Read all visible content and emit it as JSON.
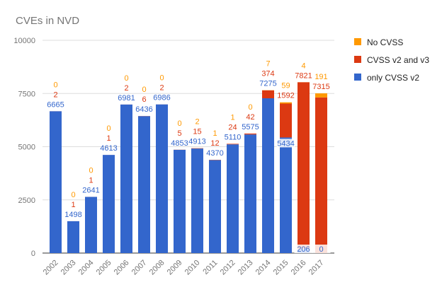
{
  "chart_data": {
    "type": "bar",
    "stacked": true,
    "title": "CVEs in NVD",
    "categories": [
      "2002",
      "2003",
      "2004",
      "2005",
      "2006",
      "2007",
      "2008",
      "2009",
      "2010",
      "2011",
      "2012",
      "2013",
      "2014",
      "2015",
      "2016",
      "2017"
    ],
    "series": [
      {
        "name": "only CVSS v2",
        "color": "#3366cc",
        "values": [
          6665,
          1498,
          2641,
          4613,
          6981,
          6436,
          6986,
          4853,
          4913,
          4370,
          5110,
          5575,
          7275,
          5434,
          206,
          0
        ]
      },
      {
        "name": "CVSS v2 and v3",
        "color": "#dc3912",
        "values": [
          2,
          1,
          1,
          1,
          2,
          6,
          2,
          5,
          15,
          12,
          24,
          42,
          374,
          1592,
          7821,
          7315
        ]
      },
      {
        "name": "No CVSS",
        "color": "#ff9900",
        "values": [
          0,
          0,
          0,
          0,
          0,
          0,
          0,
          0,
          2,
          1,
          1,
          0,
          7,
          59,
          4,
          191
        ]
      }
    ],
    "ylim": [
      0,
      10000
    ],
    "yticks": [
      "0",
      "2500",
      "5000",
      "7500",
      "10000"
    ],
    "grid": true,
    "legend": "right"
  }
}
